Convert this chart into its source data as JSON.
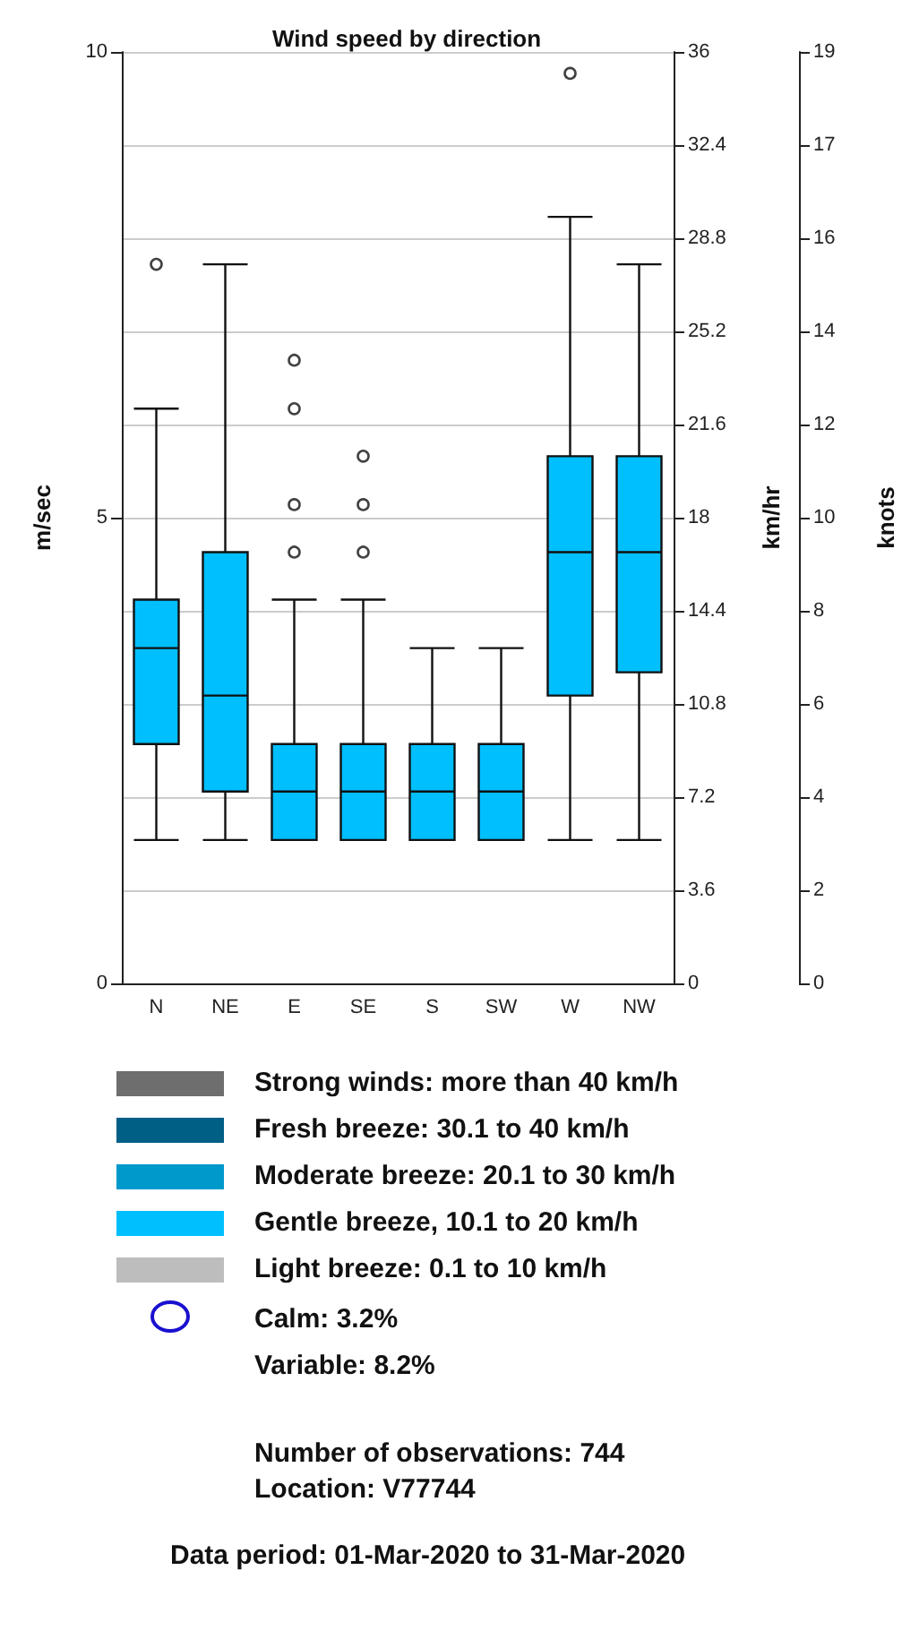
{
  "chart_data": {
    "type": "box",
    "title": "Wind speed by direction",
    "categories": [
      "N",
      "NE",
      "E",
      "SE",
      "S",
      "SW",
      "W",
      "NW"
    ],
    "color": "#00bfff",
    "boxes": [
      {
        "low": 1.54,
        "q1": 2.57,
        "median": 3.6,
        "q3": 4.12,
        "high": 6.17,
        "outliers": [
          7.72
        ]
      },
      {
        "low": 1.54,
        "q1": 2.06,
        "median": 3.09,
        "q3": 4.63,
        "high": 7.72
      },
      {
        "low": 1.54,
        "q1": 1.54,
        "median": 2.06,
        "q3": 2.57,
        "high": 4.12,
        "outliers": [
          4.63,
          5.14,
          6.17,
          6.69
        ]
      },
      {
        "low": 1.54,
        "q1": 1.54,
        "median": 2.06,
        "q3": 2.57,
        "high": 4.12,
        "outliers": [
          4.63,
          5.14,
          5.66
        ]
      },
      {
        "low": 1.54,
        "q1": 1.54,
        "median": 2.06,
        "q3": 2.57,
        "high": 3.6
      },
      {
        "low": 1.54,
        "q1": 1.54,
        "median": 2.06,
        "q3": 2.57,
        "high": 3.6
      },
      {
        "low": 1.54,
        "q1": 3.09,
        "median": 4.63,
        "q3": 5.66,
        "high": 8.23,
        "outliers": [
          9.77
        ]
      },
      {
        "low": 1.54,
        "q1": 3.34,
        "median": 4.63,
        "q3": 5.66,
        "high": 7.72
      }
    ],
    "ylabel": "m/sec",
    "ylim": [
      0,
      10
    ],
    "yticks": [
      0,
      5,
      10
    ],
    "y2label": "km/hr",
    "y2lim": [
      0,
      36
    ],
    "y2ticks": [
      0,
      3.6,
      7.2,
      10.8,
      14.4,
      18,
      21.6,
      25.2,
      28.8,
      32.4,
      36
    ],
    "y3label": "knots",
    "y3lim": [
      0,
      19.44
    ],
    "y3ticks": [
      0,
      {
        "value": 1.94,
        "label": "2"
      },
      {
        "value": 3.89,
        "label": "4"
      },
      {
        "value": 5.83,
        "label": "6"
      },
      {
        "value": 7.78,
        "label": "8"
      },
      {
        "value": 9.72,
        "label": "10"
      },
      {
        "value": 11.66,
        "label": "12"
      },
      {
        "value": 13.61,
        "label": "14"
      },
      {
        "value": 15.55,
        "label": "16"
      },
      {
        "value": 17.49,
        "label": "17"
      },
      {
        "value": 19.44,
        "label": "19"
      }
    ],
    "grid": true,
    "annotations": [
      "Strong winds: more than 40 km/h",
      "Fresh breeze: 30.1 to 40 km/h",
      "Moderate breeze: 20.1 to 30 km/h",
      "Gentle breeze, 10.1 to 20 km/h",
      "Light breeze: 0.1 to 10 km/h",
      "Calm: 3.2%",
      "Variable: 8.2%",
      "Number of observations:  744",
      "Location:  V77744",
      "Data period: 01-Mar-2020 to 31-Mar-2020"
    ]
  }
}
